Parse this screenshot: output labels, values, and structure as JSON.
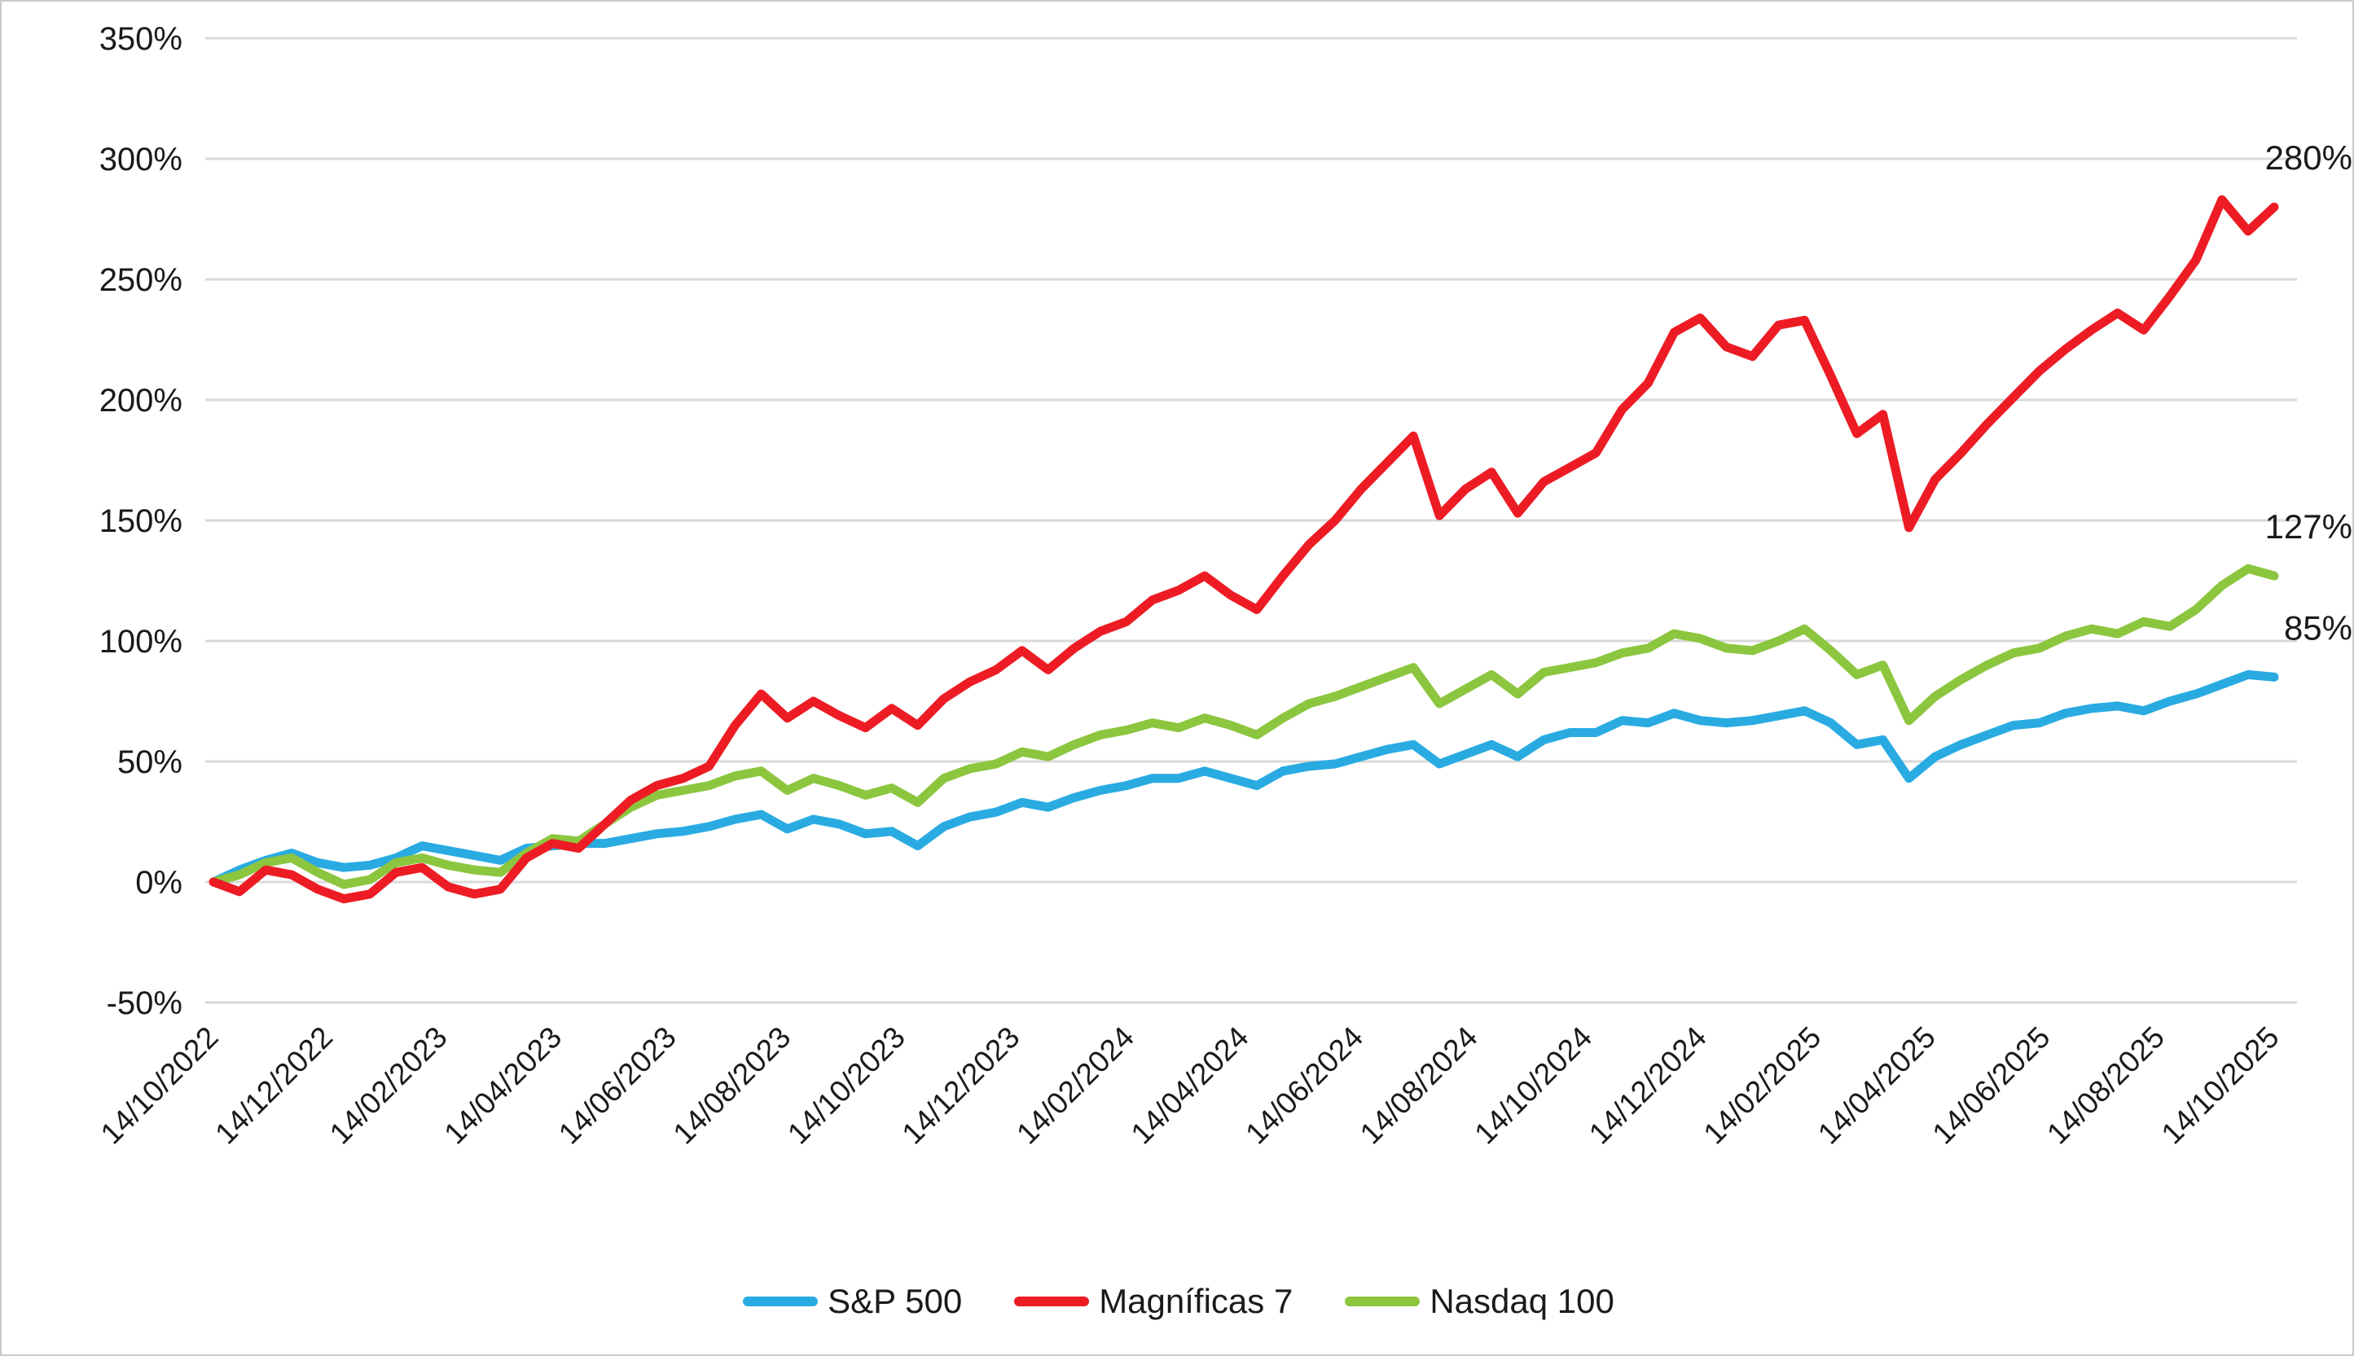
{
  "chart_data": {
    "type": "line",
    "title": "",
    "xlabel": "",
    "ylabel": "",
    "ylim": [
      -50,
      350
    ],
    "grid": "horizontal-only",
    "legend_position": "bottom-center",
    "y_tick_labels": [
      "350%",
      "300%",
      "250%",
      "200%",
      "150%",
      "100%",
      "50%",
      "0%",
      "-50%"
    ],
    "y_tick_values": [
      350,
      300,
      250,
      200,
      150,
      100,
      50,
      0,
      -50
    ],
    "x_tick_labels": [
      "14/10/2022",
      "14/12/2022",
      "14/02/2023",
      "14/04/2023",
      "14/06/2023",
      "14/08/2023",
      "14/10/2023",
      "14/12/2023",
      "14/02/2024",
      "14/04/2024",
      "14/06/2024",
      "14/08/2024",
      "14/10/2024",
      "14/12/2024",
      "14/02/2025",
      "14/04/2025",
      "14/06/2025",
      "14/08/2025",
      "14/10/2025"
    ],
    "x_range": [
      "14/10/2022",
      "14/10/2025"
    ],
    "sampling_note": "values are cumulative % return sampled at even intervals between 14/10/2022 and 14/10/2025",
    "series": [
      {
        "name": "S&P 500",
        "slug": "sp500",
        "color": "#29ABE2",
        "end_label": "85%",
        "end_value": 85,
        "values": [
          0,
          5,
          9,
          12,
          8,
          6,
          7,
          10,
          15,
          13,
          11,
          9,
          14,
          15,
          16,
          16,
          18,
          20,
          21,
          23,
          26,
          28,
          22,
          26,
          24,
          20,
          21,
          15,
          23,
          27,
          29,
          33,
          31,
          35,
          38,
          40,
          43,
          43,
          46,
          43,
          40,
          46,
          48,
          49,
          52,
          55,
          57,
          49,
          53,
          57,
          52,
          59,
          62,
          62,
          67,
          66,
          70,
          67,
          66,
          67,
          69,
          71,
          66,
          57,
          59,
          43,
          52,
          57,
          61,
          65,
          66,
          70,
          72,
          73,
          71,
          75,
          78,
          82,
          86,
          85
        ]
      },
      {
        "name": "Nasdaq 100",
        "slug": "nasdaq100",
        "color": "#8CC63F",
        "end_label": "127%",
        "end_value": 127,
        "values": [
          0,
          3,
          8,
          10,
          4,
          -1,
          1,
          8,
          10,
          7,
          5,
          4,
          12,
          18,
          17,
          24,
          31,
          36,
          38,
          40,
          44,
          46,
          38,
          43,
          40,
          36,
          39,
          33,
          43,
          47,
          49,
          54,
          52,
          57,
          61,
          63,
          66,
          64,
          68,
          65,
          61,
          68,
          74,
          77,
          81,
          85,
          89,
          74,
          80,
          86,
          78,
          87,
          89,
          91,
          95,
          97,
          103,
          101,
          97,
          96,
          100,
          105,
          96,
          86,
          90,
          67,
          77,
          84,
          90,
          95,
          97,
          102,
          105,
          103,
          108,
          106,
          113,
          123,
          130,
          127
        ]
      },
      {
        "name": "Magníficas 7",
        "slug": "magnificas7",
        "color": "#ED1C24",
        "end_label": "280%",
        "end_value": 280,
        "values": [
          0,
          -4,
          5,
          3,
          -3,
          -7,
          -5,
          4,
          6,
          -2,
          -5,
          -3,
          10,
          16,
          14,
          24,
          34,
          40,
          43,
          48,
          65,
          78,
          68,
          75,
          69,
          64,
          72,
          65,
          76,
          83,
          88,
          96,
          88,
          97,
          104,
          108,
          117,
          121,
          127,
          119,
          113,
          127,
          140,
          150,
          163,
          174,
          185,
          152,
          163,
          170,
          153,
          166,
          172,
          178,
          196,
          207,
          228,
          234,
          222,
          218,
          231,
          233,
          210,
          186,
          194,
          147,
          167,
          178,
          190,
          201,
          212,
          221,
          229,
          236,
          229,
          243,
          258,
          283,
          270,
          280
        ]
      }
    ]
  },
  "legend": {
    "items": [
      {
        "label": "S&P 500",
        "slug": "sp500",
        "color": "#29ABE2"
      },
      {
        "label": "Magníficas 7",
        "slug": "magnificas7",
        "color": "#ED1C24"
      },
      {
        "label": "Nasdaq 100",
        "slug": "nasdaq100",
        "color": "#8CC63F"
      }
    ]
  },
  "styles": {
    "background": "#FFFFFF",
    "border_color": "#C9C9C9",
    "grid_color": "#D9D9D9",
    "text_color": "#1A1A1A"
  }
}
